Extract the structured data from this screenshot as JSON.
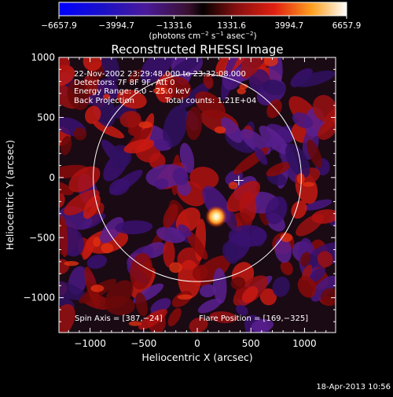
{
  "colorbar": {
    "ticks": [
      "−6657.9",
      "−3994.7",
      "−1331.6",
      "1331.6",
      "3994.7",
      "6657.9"
    ],
    "units_prefix": "(photons cm",
    "units_exp1": "−2",
    "units_mid": " s",
    "units_exp2": "−1",
    "units_mid2": " asec",
    "units_exp3": "−2",
    "units_suffix": ")"
  },
  "chart_data": {
    "type": "heatmap",
    "title": "Reconstructed RHESSI Image",
    "xlabel": "Heliocentric X (arcsec)",
    "ylabel": "Heliocentric Y (arcsec)",
    "xlim": [
      -1290,
      1290
    ],
    "ylim": [
      -1290,
      1000
    ],
    "xticks": [
      "−1000",
      "−500",
      "0",
      "500",
      "1000"
    ],
    "xtick_values": [
      -1000,
      -500,
      0,
      500,
      1000
    ],
    "yticks": [
      "1000",
      "500",
      "0",
      "−500",
      "−1000"
    ],
    "ytick_values": [
      1000,
      500,
      0,
      -500,
      -1000
    ],
    "colorbar_range": [
      -6657.9,
      6657.9
    ],
    "solar_limb_radius": 970,
    "spin_axis": [
      387,
      -24
    ],
    "flare_position": [
      169,
      -325
    ],
    "info_lines": [
      "22‑Nov‑2002 23:29:48.000 to 23:32:08.000",
      "Detectors: 7F 8F 9F, Att 0",
      "Energy Range: 6.0 – 25.0 keV"
    ],
    "method": "Back Projection",
    "total_counts": "Total counts: 1.21E+04",
    "spin_axis_label": "Spin Axis = [387,−24]",
    "flare_position_label": "Flare Position = [169,−325]"
  },
  "footer": {
    "timestamp": "18‑Apr‑2013 10:56"
  }
}
